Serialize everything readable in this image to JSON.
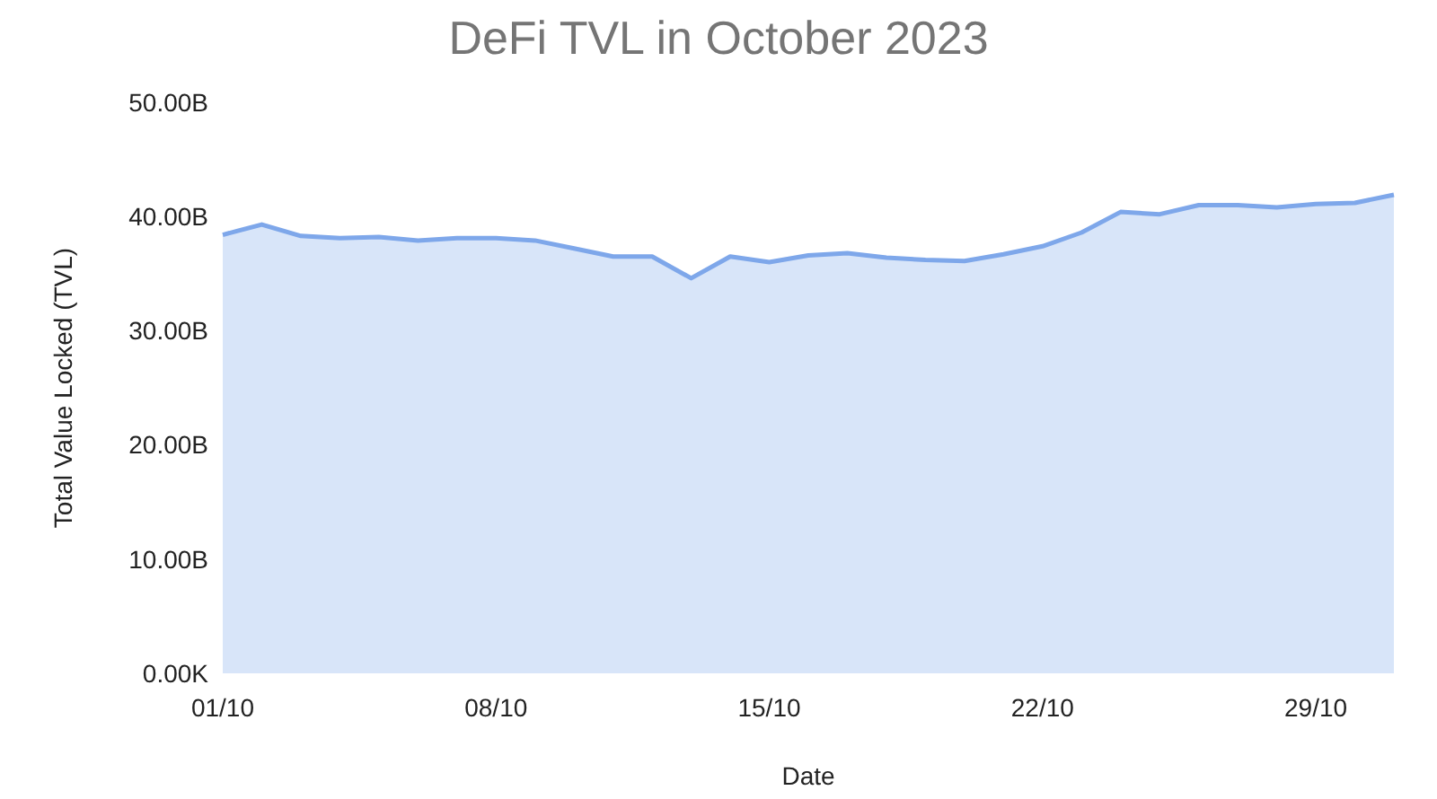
{
  "chart_data": {
    "type": "area",
    "title": "DeFi TVL in October 2023",
    "xlabel": "Date",
    "ylabel": "Total Value Locked (TVL)",
    "x": [
      "2023-10-01",
      "2023-10-02",
      "2023-10-03",
      "2023-10-04",
      "2023-10-05",
      "2023-10-06",
      "2023-10-07",
      "2023-10-08",
      "2023-10-09",
      "2023-10-10",
      "2023-10-11",
      "2023-10-12",
      "2023-10-13",
      "2023-10-14",
      "2023-10-15",
      "2023-10-16",
      "2023-10-17",
      "2023-10-18",
      "2023-10-19",
      "2023-10-20",
      "2023-10-21",
      "2023-10-22",
      "2023-10-23",
      "2023-10-24",
      "2023-10-25",
      "2023-10-26",
      "2023-10-27",
      "2023-10-28",
      "2023-10-29",
      "2023-10-30",
      "2023-10-31"
    ],
    "series": [
      {
        "color": "#7ea7ea",
        "values": [
          38.4,
          39.3,
          38.3,
          38.1,
          38.2,
          37.9,
          38.1,
          38.1,
          37.9,
          37.2,
          36.5,
          36.5,
          34.6,
          36.5,
          36.0,
          36.6,
          36.8,
          36.4,
          36.2,
          36.1,
          36.7,
          37.4,
          38.6,
          40.4,
          40.2,
          41.0,
          41.0,
          40.8,
          41.1,
          41.2,
          41.9
        ]
      }
    ],
    "xlim": [
      "2023-10-01",
      "2023-10-31"
    ],
    "xticks": [
      {
        "value": "2023-10-01",
        "label": "01/10"
      },
      {
        "value": "2023-10-08",
        "label": "08/10"
      },
      {
        "value": "2023-10-15",
        "label": "15/10"
      },
      {
        "value": "2023-10-22",
        "label": "22/10"
      },
      {
        "value": "2023-10-29",
        "label": "29/10"
      }
    ],
    "ylim": [
      0,
      50
    ],
    "yticks": [
      {
        "value": 0,
        "label": "0.00K"
      },
      {
        "value": 10,
        "label": "10.00B"
      },
      {
        "value": 20,
        "label": "20.00B"
      },
      {
        "value": 30,
        "label": "30.00B"
      },
      {
        "value": 40,
        "label": "40.00B"
      },
      {
        "value": 50,
        "label": "50.00B"
      }
    ]
  }
}
